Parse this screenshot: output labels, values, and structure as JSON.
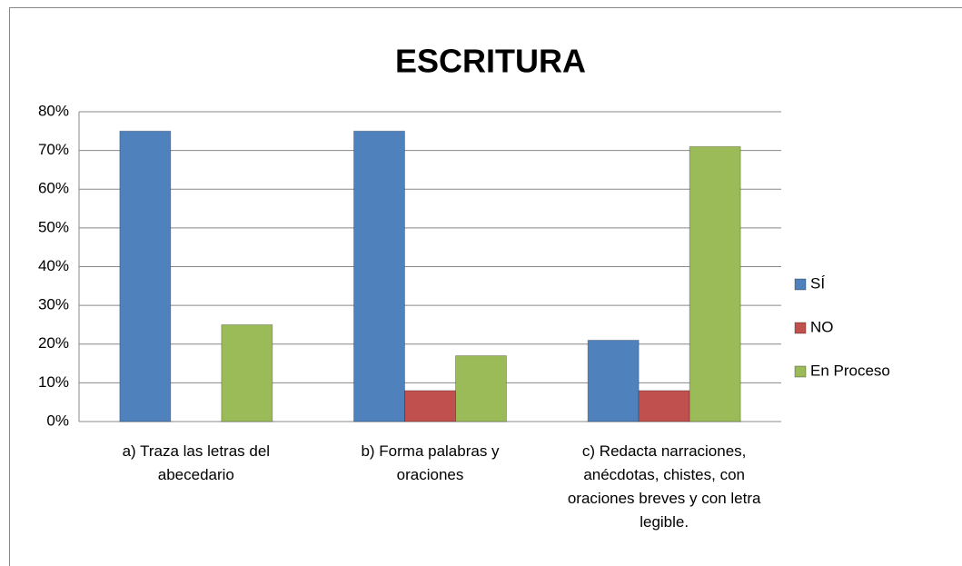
{
  "chart_data": {
    "type": "bar",
    "title": "ESCRITURA",
    "categories": [
      "a) Traza las letras del abecedario",
      "b) Forma palabras y oraciones",
      "c) Redacta narraciones, anécdotas, chistes, con oraciones breves y con letra legible."
    ],
    "series": [
      {
        "name": "SÍ",
        "color": "#4f81bd",
        "values": [
          75,
          75,
          21
        ]
      },
      {
        "name": "NO",
        "color": "#c0504d",
        "values": [
          0,
          8,
          8
        ]
      },
      {
        "name": "En Proceso",
        "color": "#9bbb59",
        "values": [
          25,
          17,
          71
        ]
      }
    ],
    "ylim": [
      0,
      80
    ],
    "yticks": [
      {
        "value": 0,
        "label": "0%"
      },
      {
        "value": 10,
        "label": "10%"
      },
      {
        "value": 20,
        "label": "20%"
      },
      {
        "value": 30,
        "label": "30%"
      },
      {
        "value": 40,
        "label": "40%"
      },
      {
        "value": 50,
        "label": "50%"
      },
      {
        "value": 60,
        "label": "60%"
      },
      {
        "value": 70,
        "label": "70%"
      },
      {
        "value": 80,
        "label": "80%"
      }
    ],
    "grid": true,
    "legend": "right"
  }
}
